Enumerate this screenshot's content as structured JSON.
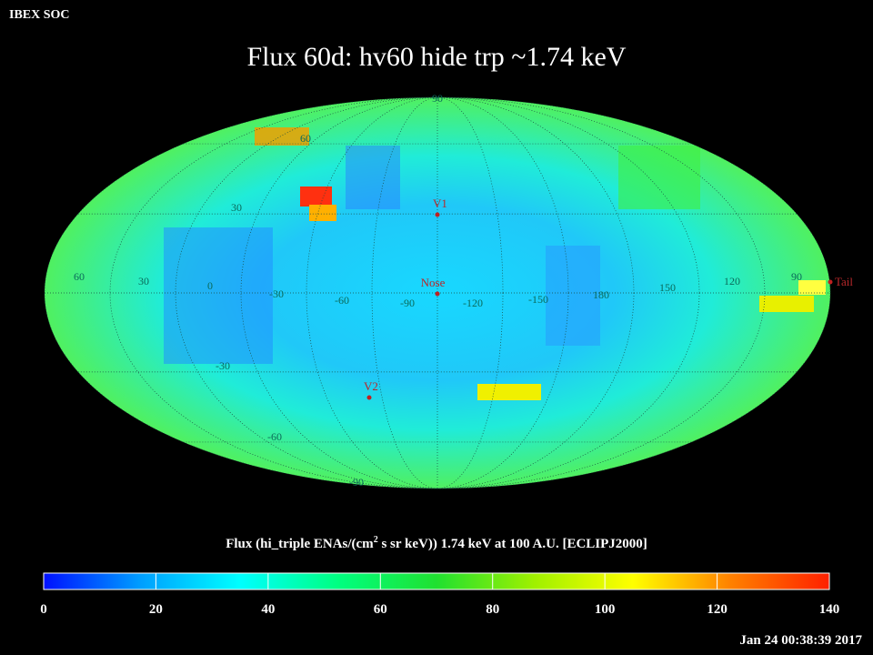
{
  "header": {
    "org": "IBEX SOC",
    "title": "Flux   60d: hv60 hide trp ~1.74 keV",
    "timestamp": "Jan 24 00:38:39 2017"
  },
  "map": {
    "longitude_labels": [
      "60",
      "30",
      "0",
      "-30",
      "-60",
      "-90",
      "-120",
      "-150",
      "180",
      "150",
      "120",
      "90"
    ],
    "latitude_labels": [
      "90",
      "60",
      "30",
      "-30",
      "-60",
      "-90"
    ],
    "markers": [
      "V1",
      "Nose",
      "V2",
      "Tail"
    ]
  },
  "colorbar": {
    "title": [
      "Flux (hi_triple ENAs/(cm",
      "2",
      " s sr keV))  1.74 keV at 100 A.U. [ECLIPJ2000]"
    ],
    "range": [
      0,
      140
    ],
    "ticks": [
      0,
      20,
      40,
      60,
      80,
      100,
      120,
      140
    ],
    "colors": [
      "#0010ff",
      "#00a0ff",
      "#00ffff",
      "#00ff80",
      "#20e030",
      "#a0f000",
      "#ffff00",
      "#ff8000",
      "#ff2000"
    ]
  }
}
